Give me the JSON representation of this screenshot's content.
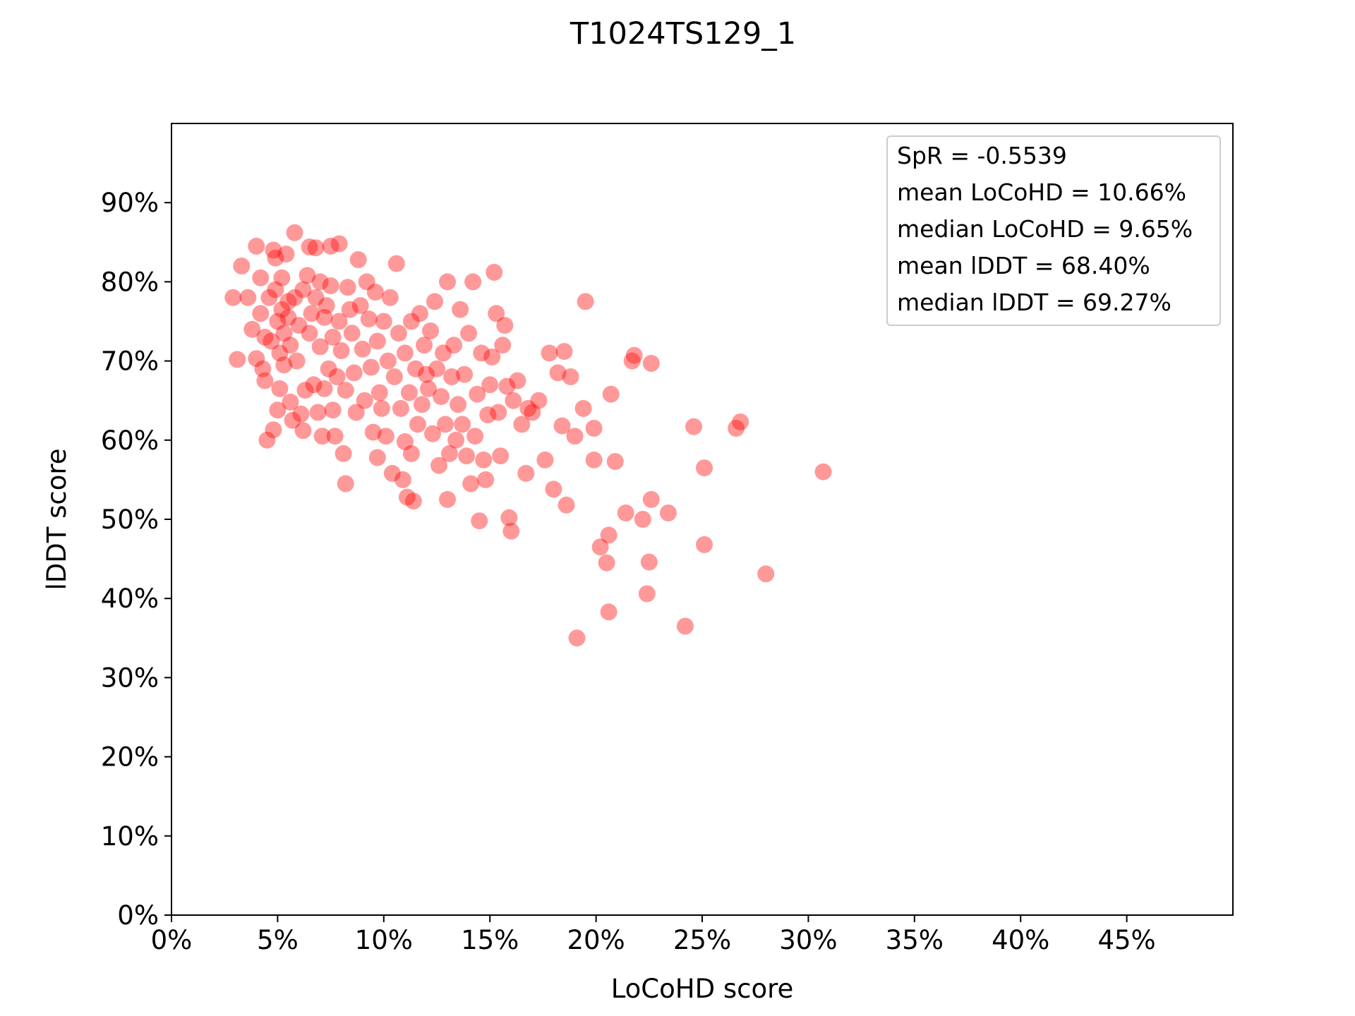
{
  "chart_data": {
    "type": "scatter",
    "title": "T1024TS129_1",
    "xlabel": "LoCoHD score",
    "ylabel": "lDDT score",
    "xlim": [
      0,
      50
    ],
    "ylim": [
      0,
      100
    ],
    "x_ticks": [
      "0%",
      "5%",
      "10%",
      "15%",
      "20%",
      "25%",
      "30%",
      "35%",
      "40%",
      "45%"
    ],
    "y_ticks": [
      "0%",
      "10%",
      "20%",
      "30%",
      "40%",
      "50%",
      "60%",
      "70%",
      "80%",
      "90%"
    ],
    "grid": false,
    "legend_position": "top-right",
    "annotation_lines": [
      "SpR = -0.5539",
      "mean LoCoHD = 10.66%",
      "median LoCoHD = 9.65%",
      "mean lDDT = 68.40%",
      "median lDDT = 69.27%"
    ],
    "marker_color": "#ff0000",
    "marker_opacity": 0.4,
    "points": [
      [
        2.9,
        78.0
      ],
      [
        3.1,
        70.2
      ],
      [
        3.3,
        82.0
      ],
      [
        3.6,
        78.0
      ],
      [
        3.8,
        74.0
      ],
      [
        4.0,
        84.5
      ],
      [
        4.0,
        70.3
      ],
      [
        4.2,
        76.0
      ],
      [
        4.2,
        80.5
      ],
      [
        4.3,
        69.0
      ],
      [
        4.4,
        67.5
      ],
      [
        4.4,
        73.0
      ],
      [
        4.5,
        60.0
      ],
      [
        4.6,
        78.0
      ],
      [
        4.7,
        72.5
      ],
      [
        4.8,
        61.3
      ],
      [
        4.8,
        84.0
      ],
      [
        4.9,
        79.0
      ],
      [
        4.9,
        83.0
      ],
      [
        5.0,
        75.0
      ],
      [
        5.0,
        63.8
      ],
      [
        5.1,
        71.0
      ],
      [
        5.1,
        66.5
      ],
      [
        5.2,
        80.5
      ],
      [
        5.2,
        76.5
      ],
      [
        5.3,
        69.5
      ],
      [
        5.3,
        73.5
      ],
      [
        5.4,
        83.5
      ],
      [
        5.5,
        77.5
      ],
      [
        5.5,
        75.5
      ],
      [
        5.6,
        64.8
      ],
      [
        5.6,
        72.0
      ],
      [
        5.7,
        62.5
      ],
      [
        5.8,
        86.2
      ],
      [
        5.8,
        78.0
      ],
      [
        5.9,
        70.0
      ],
      [
        6.0,
        74.5
      ],
      [
        6.1,
        63.3
      ],
      [
        6.2,
        61.2
      ],
      [
        6.2,
        79.0
      ],
      [
        6.3,
        66.3
      ],
      [
        6.4,
        80.8
      ],
      [
        6.5,
        84.4
      ],
      [
        6.5,
        73.5
      ],
      [
        6.6,
        76.0
      ],
      [
        6.7,
        67.0
      ],
      [
        6.8,
        84.3
      ],
      [
        6.8,
        78.0
      ],
      [
        6.9,
        63.5
      ],
      [
        7.0,
        80.0
      ],
      [
        7.0,
        71.8
      ],
      [
        7.1,
        60.5
      ],
      [
        7.2,
        75.5
      ],
      [
        7.2,
        66.5
      ],
      [
        7.3,
        77.0
      ],
      [
        7.4,
        69.0
      ],
      [
        7.5,
        84.5
      ],
      [
        7.5,
        79.5
      ],
      [
        7.6,
        73.0
      ],
      [
        7.6,
        63.8
      ],
      [
        7.7,
        60.5
      ],
      [
        7.8,
        68.0
      ],
      [
        7.9,
        84.8
      ],
      [
        7.9,
        75.0
      ],
      [
        8.0,
        71.3
      ],
      [
        8.1,
        58.3
      ],
      [
        8.2,
        54.5
      ],
      [
        8.2,
        66.3
      ],
      [
        8.3,
        79.3
      ],
      [
        8.4,
        76.5
      ],
      [
        8.5,
        73.5
      ],
      [
        8.6,
        68.5
      ],
      [
        8.7,
        63.5
      ],
      [
        8.8,
        82.8
      ],
      [
        8.9,
        77.0
      ],
      [
        9.0,
        71.5
      ],
      [
        9.1,
        65.0
      ],
      [
        9.2,
        80.0
      ],
      [
        9.3,
        75.3
      ],
      [
        9.4,
        69.2
      ],
      [
        9.5,
        61.0
      ],
      [
        9.6,
        78.7
      ],
      [
        9.7,
        72.5
      ],
      [
        9.7,
        57.8
      ],
      [
        9.8,
        66.0
      ],
      [
        9.9,
        64.0
      ],
      [
        10.0,
        75.0
      ],
      [
        10.1,
        60.5
      ],
      [
        10.2,
        70.0
      ],
      [
        10.3,
        78.0
      ],
      [
        10.4,
        55.8
      ],
      [
        10.5,
        68.0
      ],
      [
        10.6,
        82.3
      ],
      [
        10.7,
        73.5
      ],
      [
        10.8,
        64.0
      ],
      [
        10.9,
        55.0
      ],
      [
        11.0,
        59.8
      ],
      [
        11.0,
        71.0
      ],
      [
        11.1,
        52.8
      ],
      [
        11.2,
        66.0
      ],
      [
        11.3,
        75.0
      ],
      [
        11.3,
        58.3
      ],
      [
        11.4,
        52.3
      ],
      [
        11.5,
        69.0
      ],
      [
        11.6,
        62.0
      ],
      [
        11.7,
        76.0
      ],
      [
        11.8,
        64.5
      ],
      [
        11.9,
        72.0
      ],
      [
        12.0,
        68.3
      ],
      [
        12.1,
        66.5
      ],
      [
        12.2,
        73.8
      ],
      [
        12.3,
        60.8
      ],
      [
        12.4,
        77.5
      ],
      [
        12.5,
        69.0
      ],
      [
        12.6,
        56.8
      ],
      [
        12.7,
        65.5
      ],
      [
        12.8,
        71.0
      ],
      [
        12.9,
        62.0
      ],
      [
        13.0,
        80.0
      ],
      [
        13.0,
        52.5
      ],
      [
        13.1,
        58.3
      ],
      [
        13.2,
        68.0
      ],
      [
        13.3,
        72.0
      ],
      [
        13.4,
        60.0
      ],
      [
        13.5,
        64.5
      ],
      [
        13.6,
        76.5
      ],
      [
        13.7,
        62.0
      ],
      [
        13.8,
        68.3
      ],
      [
        13.9,
        58.0
      ],
      [
        14.0,
        73.5
      ],
      [
        14.1,
        54.5
      ],
      [
        14.2,
        80.0
      ],
      [
        14.3,
        60.5
      ],
      [
        14.4,
        65.8
      ],
      [
        14.5,
        49.8
      ],
      [
        14.6,
        71.0
      ],
      [
        14.7,
        57.5
      ],
      [
        14.8,
        55.0
      ],
      [
        14.9,
        63.2
      ],
      [
        15.0,
        67.0
      ],
      [
        15.1,
        70.5
      ],
      [
        15.2,
        81.2
      ],
      [
        15.3,
        76.0
      ],
      [
        15.4,
        63.5
      ],
      [
        15.5,
        58.0
      ],
      [
        15.6,
        72.0
      ],
      [
        15.7,
        74.5
      ],
      [
        15.8,
        66.8
      ],
      [
        15.9,
        50.2
      ],
      [
        16.0,
        48.5
      ],
      [
        16.1,
        65.0
      ],
      [
        16.3,
        67.5
      ],
      [
        16.5,
        62.0
      ],
      [
        16.7,
        55.8
      ],
      [
        16.8,
        64.0
      ],
      [
        17.0,
        63.5
      ],
      [
        17.3,
        65.0
      ],
      [
        17.6,
        57.5
      ],
      [
        17.8,
        71.0
      ],
      [
        18.0,
        53.8
      ],
      [
        18.2,
        68.5
      ],
      [
        18.4,
        61.8
      ],
      [
        18.5,
        71.2
      ],
      [
        18.6,
        51.8
      ],
      [
        18.8,
        68.0
      ],
      [
        19.0,
        60.5
      ],
      [
        19.1,
        35.0
      ],
      [
        19.4,
        64.0
      ],
      [
        19.5,
        77.5
      ],
      [
        19.9,
        57.5
      ],
      [
        19.9,
        61.5
      ],
      [
        20.2,
        46.5
      ],
      [
        20.5,
        44.5
      ],
      [
        20.6,
        38.3
      ],
      [
        20.6,
        48.0
      ],
      [
        20.7,
        65.8
      ],
      [
        20.9,
        57.3
      ],
      [
        21.4,
        50.8
      ],
      [
        21.7,
        70.0
      ],
      [
        21.8,
        70.7
      ],
      [
        22.2,
        50.0
      ],
      [
        22.4,
        40.6
      ],
      [
        22.5,
        44.6
      ],
      [
        22.6,
        52.5
      ],
      [
        22.6,
        69.7
      ],
      [
        23.4,
        50.8
      ],
      [
        24.2,
        36.5
      ],
      [
        24.6,
        61.7
      ],
      [
        25.1,
        46.8
      ],
      [
        25.1,
        56.5
      ],
      [
        26.6,
        61.5
      ],
      [
        26.8,
        62.3
      ],
      [
        28.0,
        43.1
      ],
      [
        30.7,
        56.0
      ]
    ]
  }
}
